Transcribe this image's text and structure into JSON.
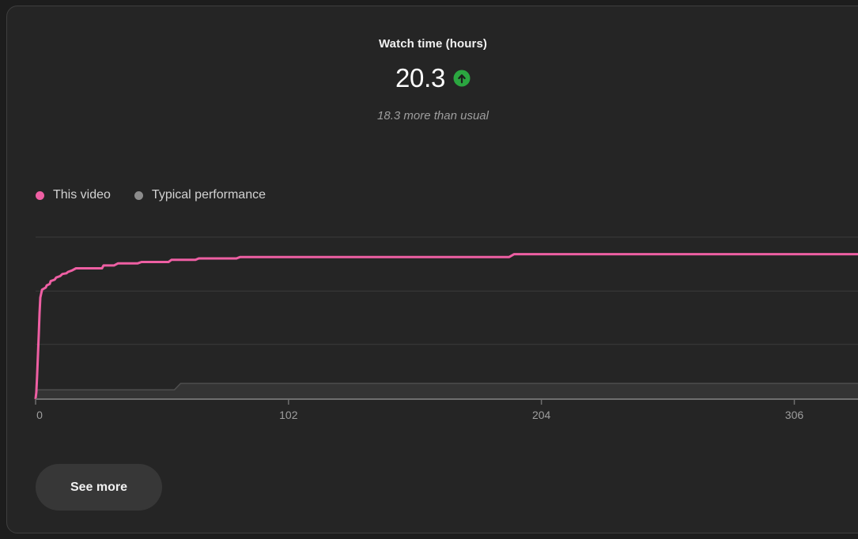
{
  "header": {
    "title": "Watch time (hours)",
    "value": "20.3",
    "trend_direction": "up",
    "subtitle": "18.3 more than usual"
  },
  "legend": {
    "items": [
      {
        "label": "This video",
        "color": "#ee5fa3"
      },
      {
        "label": "Typical performance",
        "color": "#8c8c8c"
      }
    ]
  },
  "chart_data": {
    "type": "line",
    "title": "Watch time (hours)",
    "xlabel": "",
    "ylabel": "Watch time (hours)",
    "xlim": [
      0,
      332
    ],
    "ylim": [
      0,
      22.7
    ],
    "grid": "horizontal",
    "gridlines_hours": [
      7.6,
      15.1,
      22.7
    ],
    "legend_position": "top-left",
    "x_ticks": [
      {
        "value": 0,
        "label": "0"
      },
      {
        "value": 102,
        "label": "102"
      },
      {
        "value": 204,
        "label": "204"
      },
      {
        "value": 306,
        "label": "306"
      }
    ],
    "series": [
      {
        "name": "Typical performance",
        "style": "area",
        "color": "#8c8c8c",
        "fill": "#343434",
        "edge": "#4e4e4e",
        "points": [
          [
            0,
            0
          ],
          [
            0.8,
            1.2
          ],
          [
            56.0,
            1.2
          ],
          [
            58.5,
            2.1
          ],
          [
            332.0,
            2.1
          ]
        ]
      },
      {
        "name": "This video",
        "style": "line",
        "color": "#ee5fa3",
        "points": [
          [
            0,
            0
          ],
          [
            0.3,
            0.8
          ],
          [
            0.6,
            3.1
          ],
          [
            1.3,
            9.2
          ],
          [
            1.6,
            12.0
          ],
          [
            1.9,
            14.2
          ],
          [
            2.6,
            15.3
          ],
          [
            4.1,
            15.6
          ],
          [
            4.5,
            15.9
          ],
          [
            5.7,
            16.1
          ],
          [
            6.1,
            16.5
          ],
          [
            7.7,
            16.7
          ],
          [
            8.3,
            17.0
          ],
          [
            9.9,
            17.2
          ],
          [
            10.8,
            17.5
          ],
          [
            12.4,
            17.6
          ],
          [
            13.1,
            17.8
          ],
          [
            14.7,
            18.0
          ],
          [
            16.3,
            18.3
          ],
          [
            26.8,
            18.3
          ],
          [
            27.4,
            18.7
          ],
          [
            31.6,
            18.7
          ],
          [
            33.2,
            19.0
          ],
          [
            41.1,
            19.0
          ],
          [
            42.7,
            19.2
          ],
          [
            53.6,
            19.2
          ],
          [
            54.8,
            19.5
          ],
          [
            64.5,
            19.5
          ],
          [
            65.8,
            19.7
          ],
          [
            81.0,
            19.7
          ],
          [
            82.5,
            19.9
          ],
          [
            191.0,
            19.9
          ],
          [
            193.0,
            20.3
          ],
          [
            332.0,
            20.3
          ]
        ]
      }
    ]
  },
  "footer": {
    "see_more_label": "See more"
  },
  "colors": {
    "page_bg": "#1d1d1d",
    "card_bg": "#252525",
    "card_border": "#3f3f3f",
    "text_primary": "#ffffff",
    "text_title": "#f1f1f1",
    "text_secondary": "#9e9e9e",
    "text_legend": "#d2d2d2",
    "text_axis": "#9e9e9e",
    "accent_pink": "#ee5fa3",
    "legend_gray": "#8c8c8c",
    "positive_green": "#2ba640",
    "arrow_dark": "#1d1d1d",
    "grid_color": "#3c3c3c",
    "axis_color": "#6f6f6f",
    "band_fill": "#343434",
    "band_edge": "#4e4e4e",
    "button_bg": "#373737"
  }
}
